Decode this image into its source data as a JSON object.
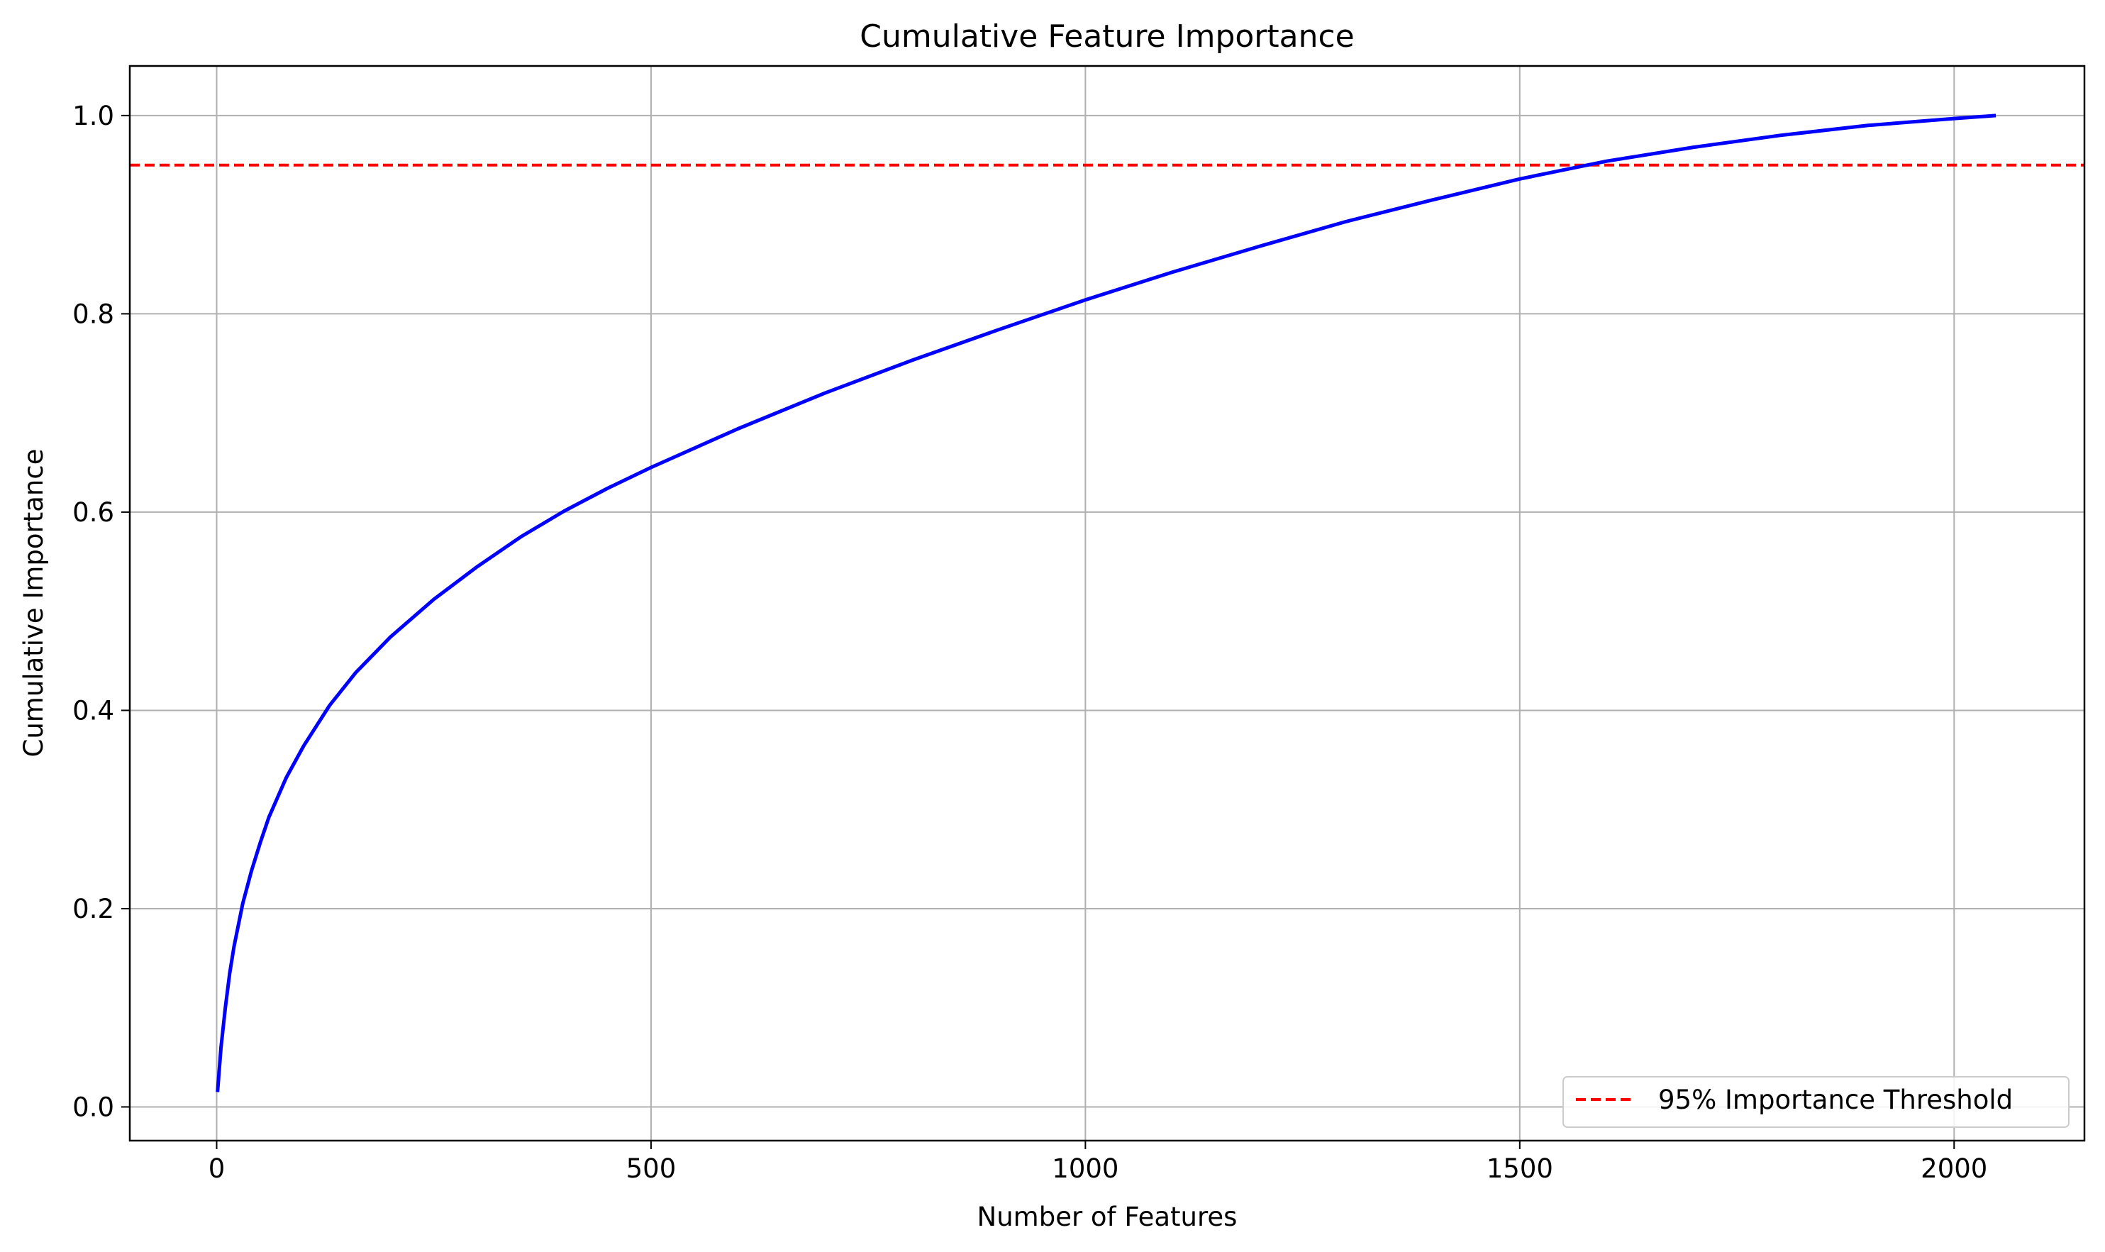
{
  "chart_data": {
    "type": "line",
    "title": "Cumulative Feature Importance",
    "xlabel": "Number of Features",
    "ylabel": "Cumulative Importance",
    "xlim": [
      -100,
      2150
    ],
    "ylim": [
      -0.034,
      1.05
    ],
    "x_ticks": [
      0,
      500,
      1000,
      1500,
      2000
    ],
    "x_tick_labels": [
      "0",
      "500",
      "1000",
      "1500",
      "2000"
    ],
    "y_ticks": [
      0.0,
      0.2,
      0.4,
      0.6,
      0.8,
      1.0
    ],
    "y_tick_labels": [
      "0.0",
      "0.2",
      "0.4",
      "0.6",
      "0.8",
      "1.0"
    ],
    "grid": true,
    "legend_position": "lower-right",
    "series": [
      {
        "color": "#0000ff",
        "style": "solid",
        "x": [
          1,
          5,
          10,
          15,
          20,
          30,
          40,
          50,
          60,
          80,
          100,
          130,
          160,
          200,
          250,
          300,
          350,
          400,
          450,
          500,
          600,
          700,
          800,
          900,
          1000,
          1100,
          1200,
          1300,
          1400,
          1500,
          1550,
          1600,
          1700,
          1800,
          1900,
          2000,
          2048
        ],
        "y": [
          0.015,
          0.06,
          0.1,
          0.135,
          0.162,
          0.205,
          0.238,
          0.266,
          0.292,
          0.332,
          0.364,
          0.405,
          0.438,
          0.474,
          0.512,
          0.545,
          0.575,
          0.601,
          0.624,
          0.645,
          0.684,
          0.72,
          0.753,
          0.784,
          0.814,
          0.842,
          0.868,
          0.893,
          0.915,
          0.936,
          0.945,
          0.954,
          0.968,
          0.98,
          0.99,
          0.997,
          1.0
        ]
      }
    ],
    "threshold": {
      "name": "95% Importance Threshold",
      "y": 0.95,
      "color": "#ff0000",
      "style": "dashed"
    }
  }
}
